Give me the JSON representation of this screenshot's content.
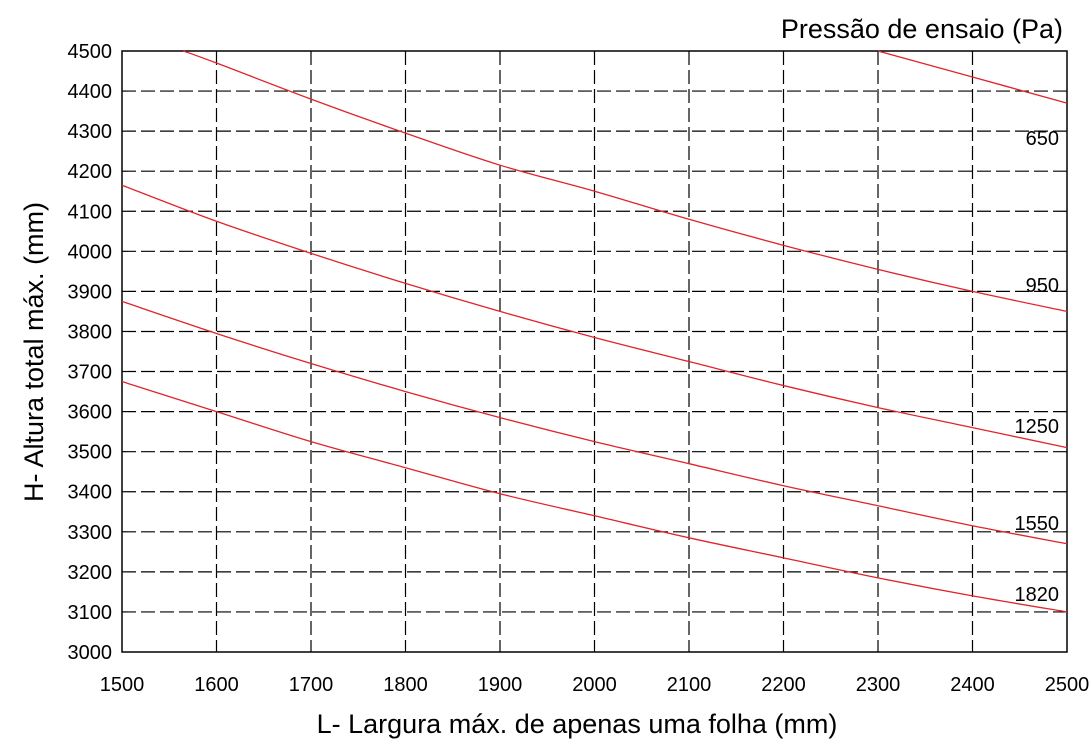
{
  "chart_data": {
    "type": "line",
    "xlabel": "L- Largura máx. de apenas uma folha (mm)",
    "ylabel": "H- Altura total máx. (mm)",
    "legend_title": "Pressão de ensaio (Pa)",
    "xlim": [
      1500,
      2500
    ],
    "ylim": [
      3000,
      4500
    ],
    "x_ticks": [
      1500,
      1600,
      1700,
      1800,
      1900,
      2000,
      2100,
      2200,
      2300,
      2400,
      2500
    ],
    "y_ticks": [
      3000,
      3100,
      3200,
      3300,
      3400,
      3500,
      3600,
      3700,
      3800,
      3900,
      4000,
      4100,
      4200,
      4300,
      4400,
      4500
    ],
    "grid": true,
    "grid_style": "dashed",
    "line_color": "#e0242c",
    "series": [
      {
        "name": "650",
        "x": [
          1565,
          1600,
          1700,
          1800,
          1900,
          2000,
          2100,
          2200,
          2300,
          2400,
          2500
        ],
        "y": [
          4500,
          4470,
          4380,
          4295,
          4215,
          4150,
          4080,
          4015,
          3955,
          3900,
          3850
        ]
      },
      {
        "name": "950",
        "x": [
          1500,
          1600,
          1700,
          1800,
          1900,
          2000,
          2100,
          2200,
          2300,
          2400,
          2500
        ],
        "y": [
          4165,
          4075,
          3995,
          3920,
          3850,
          3785,
          3725,
          3665,
          3610,
          3560,
          3510
        ]
      },
      {
        "name": "1250",
        "x": [
          1500,
          1600,
          1700,
          1800,
          1900,
          2000,
          2100,
          2200,
          2300,
          2400,
          2500
        ],
        "y": [
          3875,
          3795,
          3720,
          3650,
          3585,
          3525,
          3470,
          3415,
          3365,
          3315,
          3270
        ]
      },
      {
        "name": "1550",
        "x": [
          1500,
          1600,
          1700,
          1800,
          1900,
          2000,
          2100,
          2200,
          2300,
          2400,
          2500
        ],
        "y": [
          3675,
          3600,
          3525,
          3460,
          3395,
          3340,
          3285,
          3235,
          3185,
          3140,
          3100
        ]
      },
      {
        "name": "1820",
        "x": [
          2300,
          2400,
          2500
        ],
        "y": [
          4500,
          4435,
          4370
        ]
      }
    ]
  }
}
